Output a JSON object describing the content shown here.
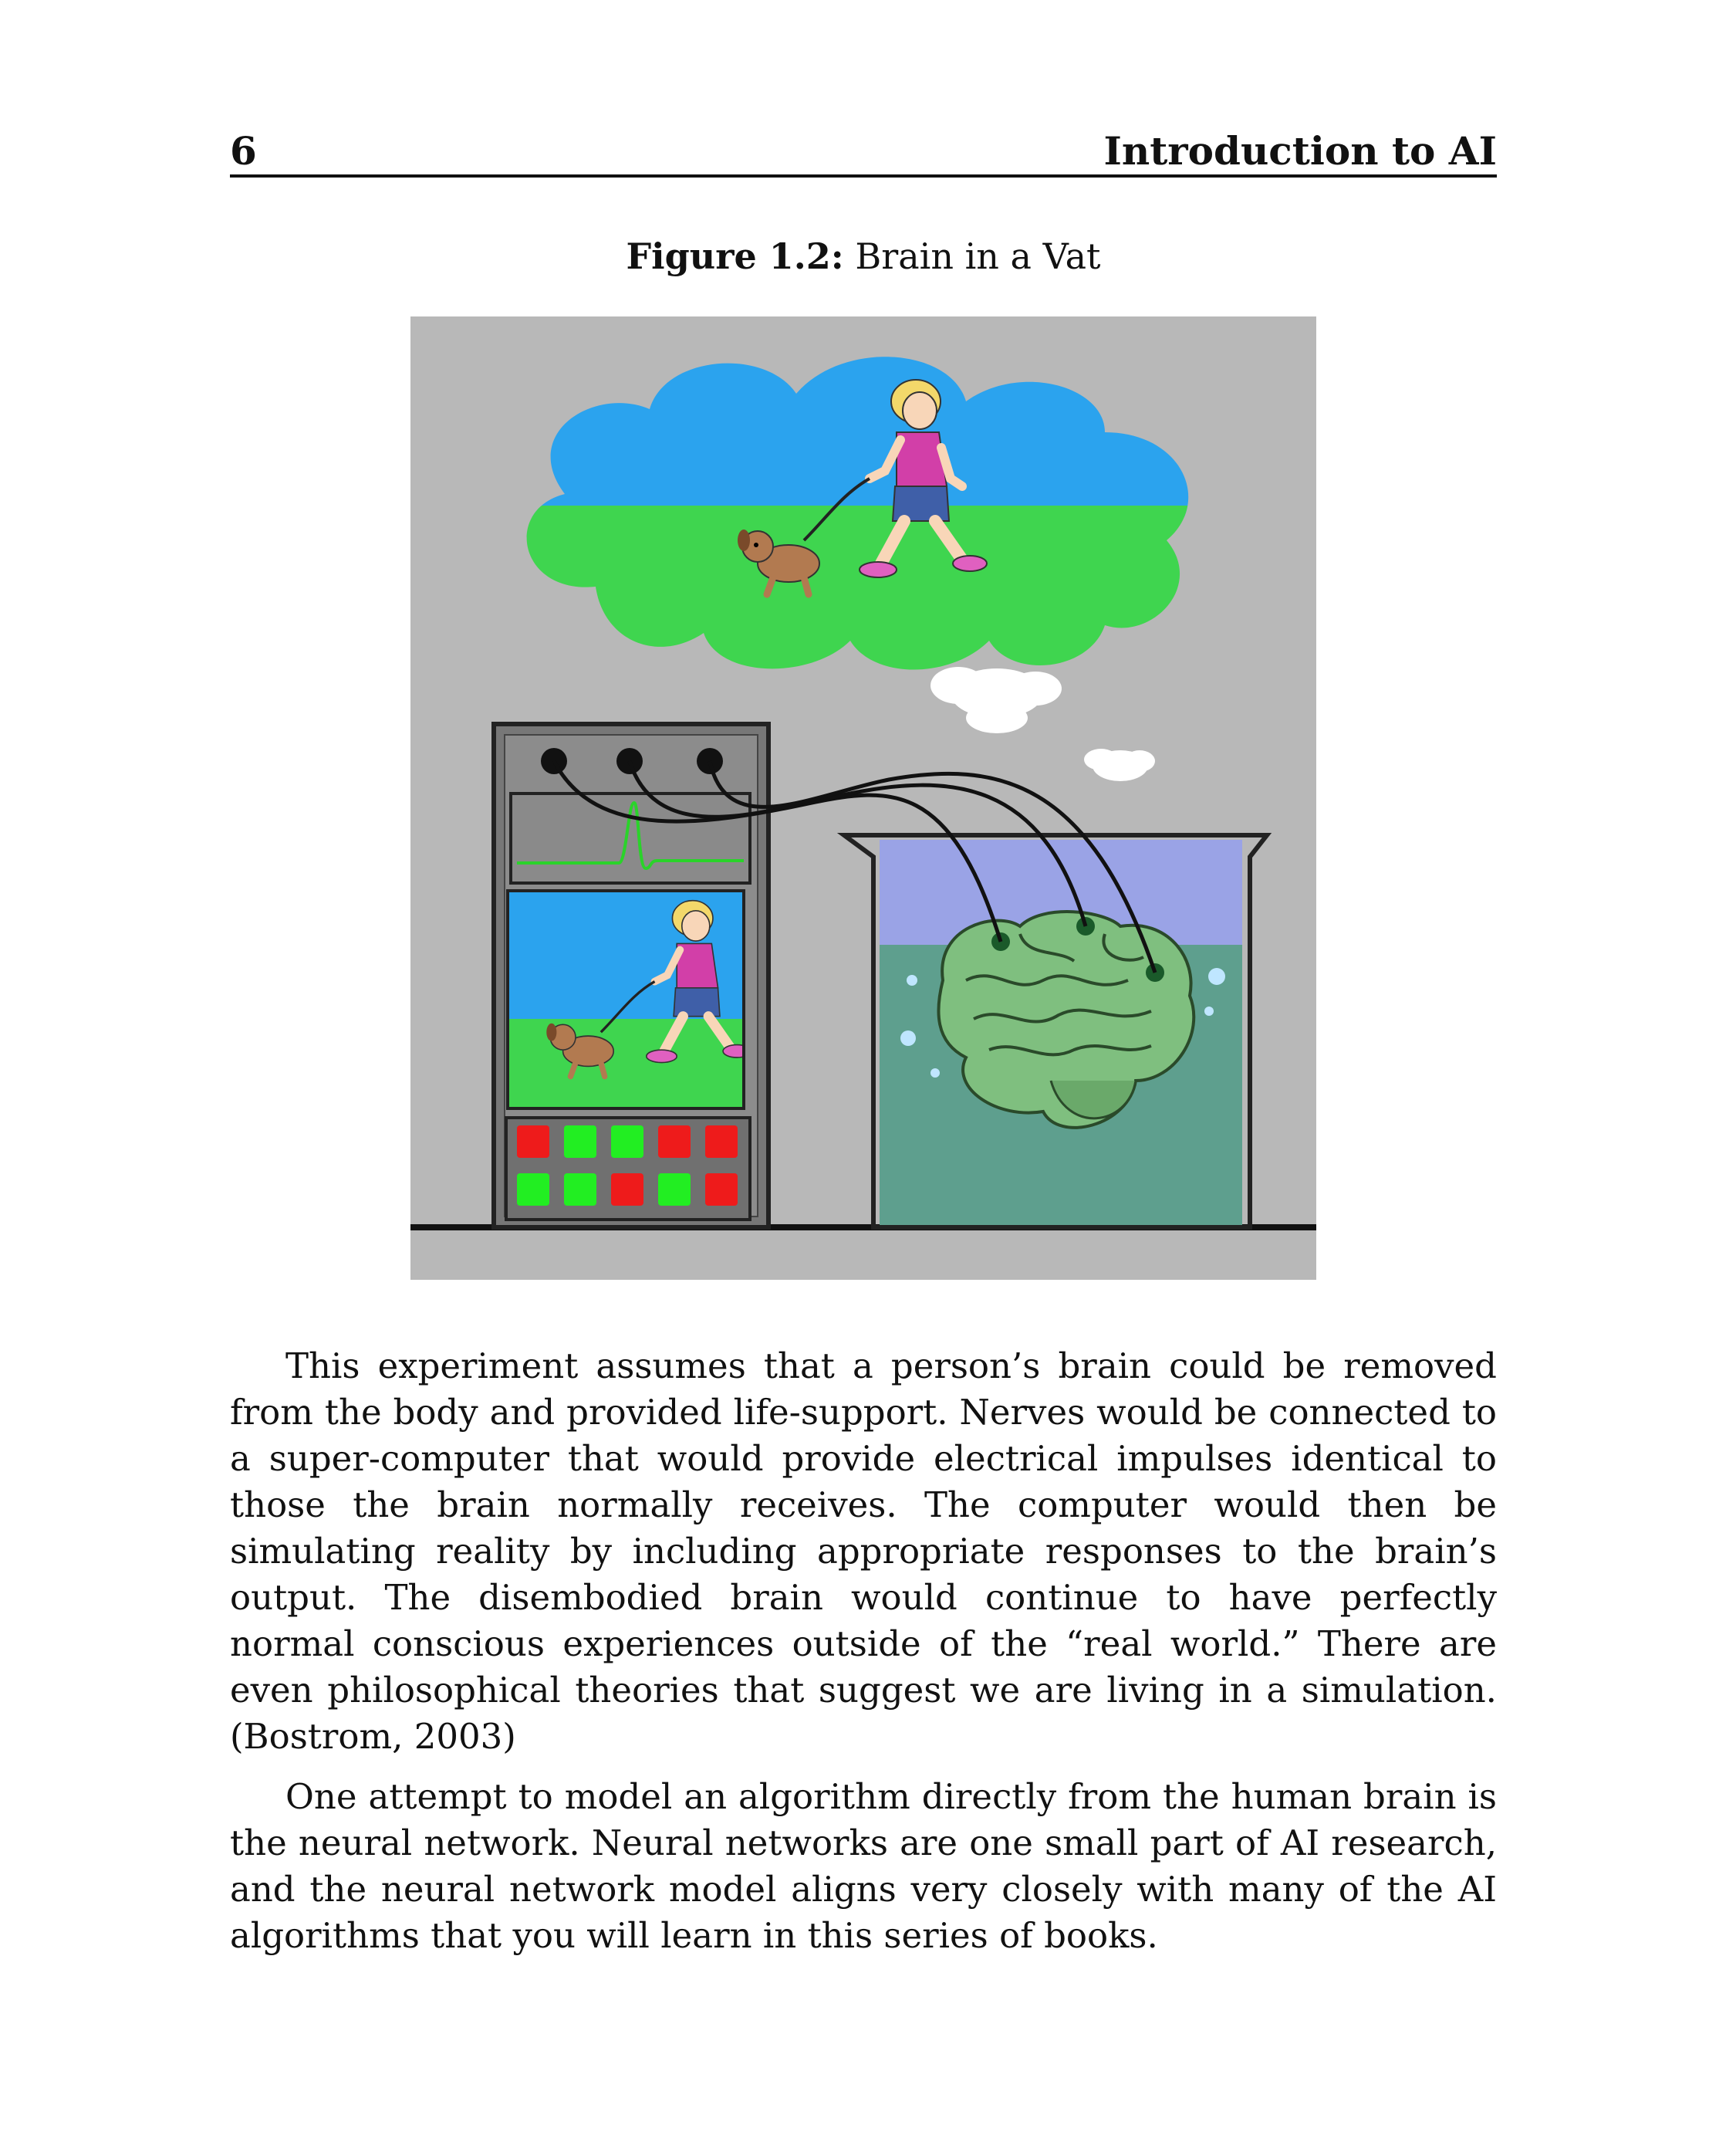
{
  "header": {
    "page_number": "6",
    "running_title": "Introduction to AI"
  },
  "figure": {
    "label": "Figure 1.2:",
    "title": "Brain in a Vat",
    "icons": [
      "thought-cloud",
      "girl-walking-dog",
      "computer-cabinet",
      "oscilloscope-screen",
      "indicator-lights",
      "beaker",
      "brain",
      "electrode-wires"
    ],
    "indicator_lights": [
      [
        "red",
        "green",
        "green",
        "red",
        "red"
      ],
      [
        "green",
        "green",
        "red",
        "green",
        "red"
      ]
    ],
    "colors": {
      "background": "#b8b8b8",
      "sky": "#2ba3ee",
      "grass": "#3fd54f",
      "beaker_air": "#9aa3e6",
      "beaker_liquid": "#5e9f8e",
      "brain": "#7fbf7f",
      "signal": "#2ad32a",
      "light_red": "#ee1b1b",
      "light_green": "#22ee22"
    }
  },
  "paragraphs": [
    "This experiment assumes that a person’s brain could be removed from the body and provided life-support. Nerves would be connected to a super-computer that would provide electrical impulses identical to those the brain normally receives. The computer would then be simulating reality by including appropriate responses to the brain’s output. The disembodied brain would continue to have perfectly normal conscious experiences outside of the “real world.” There are even philosophical theories that suggest we are living in a simulation. (Bostrom, 2003)",
    "One attempt to model an algorithm directly from the human brain is the neural network. Neural networks are one small part of AI research, and the neural network model aligns very closely with many of the AI algorithms that you will learn in this series of books."
  ]
}
